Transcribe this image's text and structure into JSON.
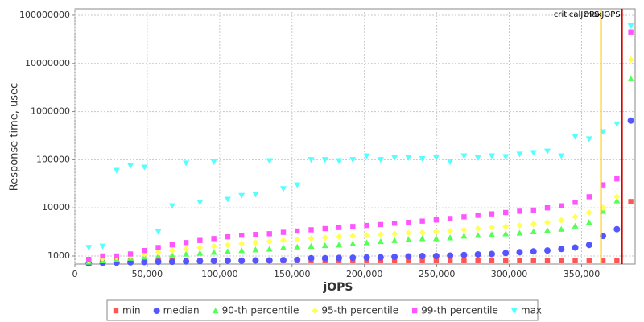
{
  "chart_data": {
    "type": "scatter",
    "xlabel": "jOPS",
    "ylabel": "Response time, usec",
    "ylog": true,
    "grid": true,
    "legend": "bottom",
    "xlim": [
      0,
      387000
    ],
    "ylim": [
      680,
      136000000
    ],
    "xticks": [
      0,
      {
        "value": 50000,
        "label": "50,000"
      },
      {
        "value": 100000,
        "label": "100,000"
      },
      {
        "value": 150000,
        "label": "150,000"
      },
      {
        "value": 200000,
        "label": "200,000"
      },
      {
        "value": 250000,
        "label": "250,000"
      },
      {
        "value": 300000,
        "label": "300,000"
      },
      {
        "value": 350000,
        "label": "350,000"
      }
    ],
    "yticks": [
      1000,
      10000,
      100000,
      1000000,
      10000000,
      100000000
    ],
    "annotations": [
      {
        "label": "criticalJOPS",
        "x": 363400,
        "color": "#ffc800"
      },
      {
        "label": "maxJOPS",
        "x": 377900,
        "color": "#dd0000"
      }
    ],
    "x": [
      9600,
      19200,
      28800,
      38400,
      48000,
      57600,
      67200,
      76800,
      86400,
      96000,
      105600,
      115200,
      124800,
      134400,
      144000,
      153600,
      163200,
      172800,
      182400,
      192000,
      201600,
      211200,
      220800,
      230400,
      240000,
      249600,
      259200,
      268800,
      278400,
      288000,
      297600,
      307200,
      316800,
      326400,
      336000,
      345600,
      355200,
      364800,
      374400,
      384000
    ],
    "series": [
      {
        "name": "min",
        "color": "#ff5555",
        "marker": "square",
        "values": [
          800,
          800,
          800,
          800,
          800,
          800,
          800,
          800,
          800,
          800,
          800,
          800,
          800,
          800,
          800,
          800,
          800,
          800,
          800,
          800,
          800,
          800,
          800,
          800,
          800,
          800,
          800,
          800,
          800,
          800,
          800,
          800,
          800,
          800,
          800,
          800,
          800,
          800,
          800,
          13500
        ]
      },
      {
        "name": "median",
        "color": "#5555ff",
        "marker": "circle",
        "values": [
          700,
          720,
          730,
          740,
          750,
          760,
          760,
          770,
          780,
          790,
          800,
          800,
          810,
          810,
          820,
          830,
          900,
          900,
          910,
          920,
          930,
          940,
          960,
          980,
          1000,
          1000,
          1020,
          1050,
          1080,
          1100,
          1150,
          1200,
          1250,
          1300,
          1400,
          1500,
          1700,
          2600,
          3600,
          650000
        ]
      },
      {
        "name": "90-th percentile",
        "color": "#55ff55",
        "marker": "triangle",
        "values": [
          750,
          800,
          850,
          900,
          950,
          1000,
          1050,
          1100,
          1150,
          1200,
          1250,
          1300,
          1350,
          1400,
          1500,
          1550,
          1600,
          1650,
          1700,
          1800,
          1900,
          2000,
          2100,
          2200,
          2300,
          2300,
          2400,
          2600,
          2700,
          2800,
          2900,
          3000,
          3200,
          3400,
          3600,
          4200,
          5000,
          8500,
          14000,
          4800000
        ]
      },
      {
        "name": "95-th percentile",
        "color": "#ffff55",
        "marker": "diamond",
        "values": [
          800,
          900,
          950,
          1000,
          1100,
          1200,
          1300,
          1400,
          1500,
          1600,
          1700,
          1800,
          1900,
          2000,
          2100,
          2200,
          2300,
          2400,
          2500,
          2600,
          2700,
          2800,
          2900,
          3000,
          3100,
          3200,
          3300,
          3500,
          3700,
          3900,
          4100,
          4300,
          4600,
          5000,
          5500,
          6500,
          8000,
          10000,
          17000,
          12000000
        ]
      },
      {
        "name": "99-th percentile",
        "color": "#ff55ff",
        "marker": "square",
        "values": [
          850,
          1000,
          1000,
          1100,
          1300,
          1500,
          1700,
          1900,
          2100,
          2300,
          2500,
          2700,
          2800,
          2900,
          3100,
          3300,
          3500,
          3700,
          3900,
          4100,
          4300,
          4500,
          4800,
          5000,
          5300,
          5600,
          6000,
          6500,
          7000,
          7500,
          8000,
          8500,
          9000,
          10000,
          11000,
          13000,
          17000,
          30000,
          40000,
          45000000
        ]
      },
      {
        "name": "max",
        "color": "#55ffff",
        "marker": "triangle-down",
        "values": [
          1500,
          1600,
          60000,
          75000,
          70000,
          3200,
          11000,
          85000,
          13000,
          90000,
          15000,
          18000,
          19000,
          95000,
          25000,
          30000,
          100000,
          100000,
          95000,
          100000,
          120000,
          100000,
          110000,
          110000,
          105000,
          110000,
          90000,
          120000,
          110000,
          120000,
          115000,
          130000,
          140000,
          150000,
          120000,
          300000,
          270000,
          380000,
          550000,
          60000000
        ]
      }
    ]
  }
}
